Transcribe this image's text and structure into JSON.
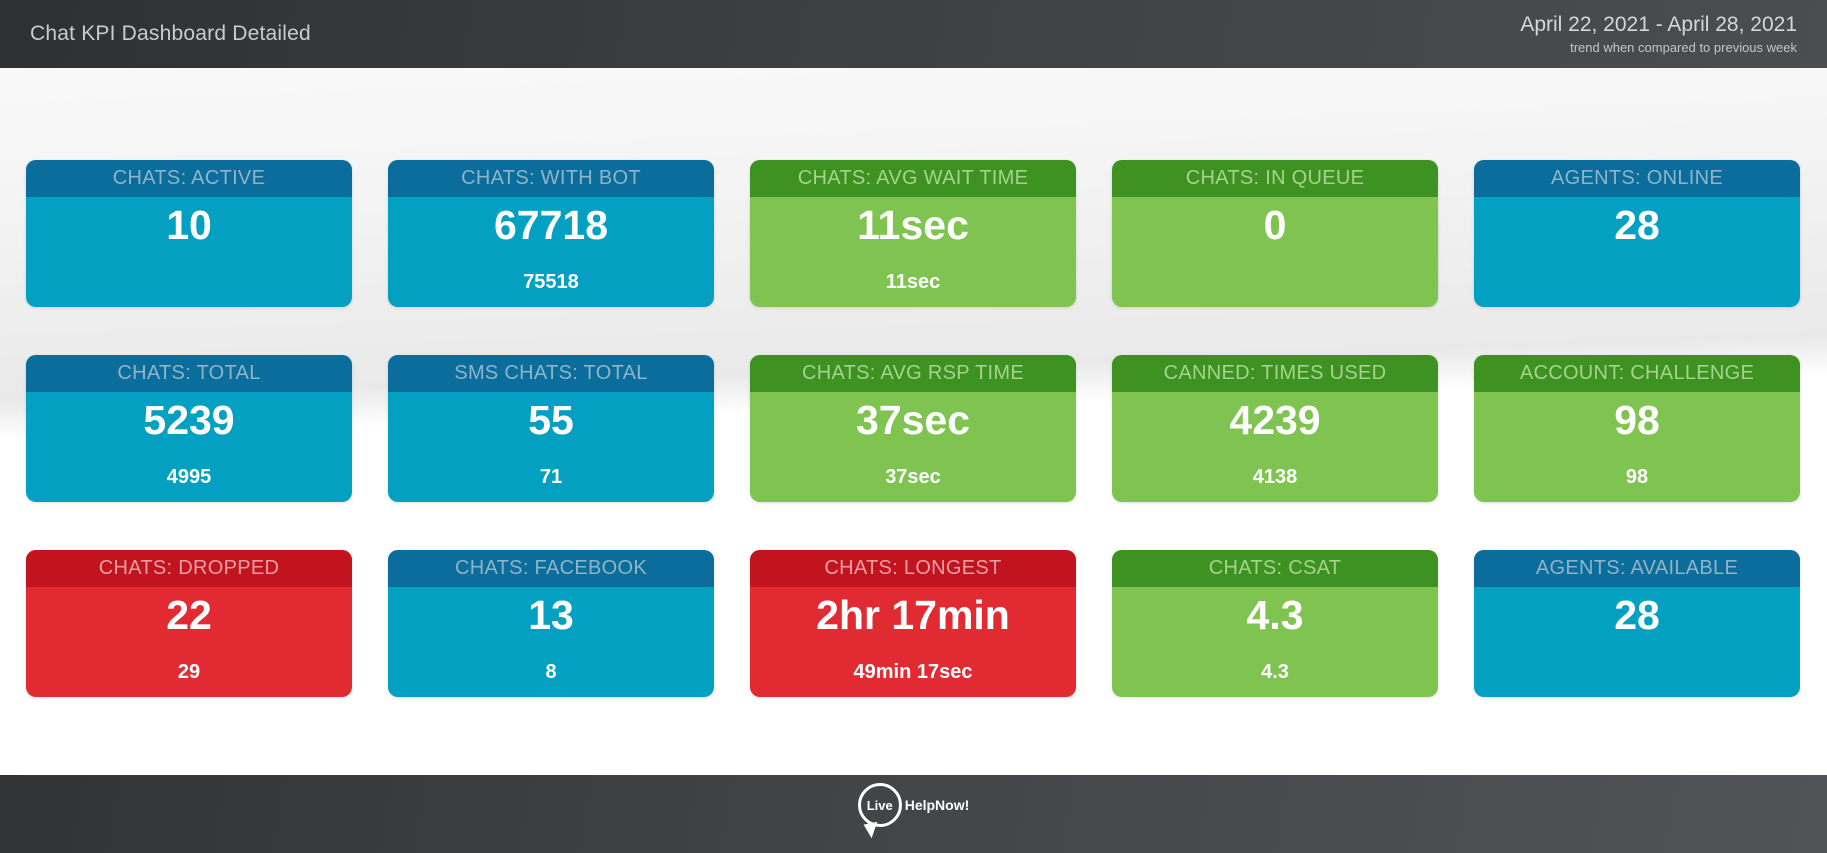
{
  "header": {
    "title": "Chat KPI Dashboard Detailed",
    "date_range": "April 22, 2021 - April 28, 2021",
    "subtitle": "trend when compared to previous week"
  },
  "colors": {
    "blue_header": "#0b6d9b",
    "blue_body": "#04a0c1",
    "green_header": "#3e9222",
    "green_body": "#7fc351",
    "red_header": "#c2141f",
    "red_body": "#e22a33",
    "topbar_dark": "#2e3032",
    "footer_dark": "#313335"
  },
  "tiles": [
    {
      "label": "CHATS: ACTIVE",
      "value": "10",
      "previous": "",
      "color": "blue"
    },
    {
      "label": "CHATS: WITH BOT",
      "value": "67718",
      "previous": "75518",
      "color": "blue"
    },
    {
      "label": "CHATS: AVG WAIT TIME",
      "value": "11sec",
      "previous": "11sec",
      "color": "green"
    },
    {
      "label": "CHATS: IN QUEUE",
      "value": "0",
      "previous": "",
      "color": "green"
    },
    {
      "label": "AGENTS: ONLINE",
      "value": "28",
      "previous": "",
      "color": "blue"
    },
    {
      "label": "CHATS: TOTAL",
      "value": "5239",
      "previous": "4995",
      "color": "blue"
    },
    {
      "label": "SMS CHATS: TOTAL",
      "value": "55",
      "previous": "71",
      "color": "blue"
    },
    {
      "label": "CHATS: AVG RSP TIME",
      "value": "37sec",
      "previous": "37sec",
      "color": "green"
    },
    {
      "label": "CANNED: TIMES USED",
      "value": "4239",
      "previous": "4138",
      "color": "green"
    },
    {
      "label": "ACCOUNT: CHALLENGE",
      "value": "98",
      "previous": "98",
      "color": "green"
    },
    {
      "label": "CHATS: DROPPED",
      "value": "22",
      "previous": "29",
      "color": "red"
    },
    {
      "label": "CHATS: FACEBOOK",
      "value": "13",
      "previous": "8",
      "color": "blue"
    },
    {
      "label": "CHATS: LONGEST",
      "value": "2hr 17min",
      "previous": "49min 17sec",
      "color": "red"
    },
    {
      "label": "CHATS: CSAT",
      "value": "4.3",
      "previous": "4.3",
      "color": "green"
    },
    {
      "label": "AGENTS: AVAILABLE",
      "value": "28",
      "previous": "",
      "color": "blue"
    }
  ],
  "footer": {
    "logo_live": "Live",
    "logo_rest": "HelpNow!"
  }
}
